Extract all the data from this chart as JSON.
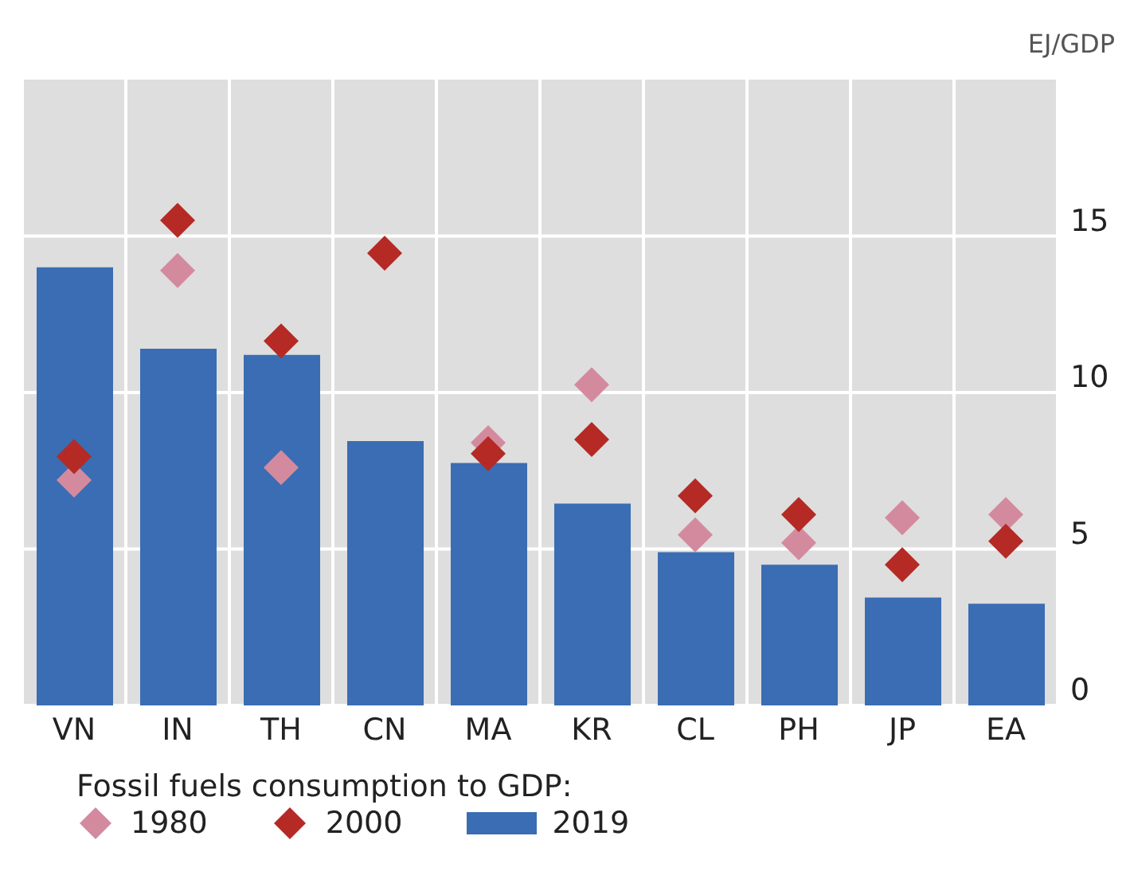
{
  "chart_data": {
    "type": "bar",
    "ylabel": "EJ/GDP",
    "legend_title": "Fossil fuels consumption to GDP:",
    "categories": [
      "VN",
      "IN",
      "TH",
      "CN",
      "MA",
      "KR",
      "CL",
      "PH",
      "JP",
      "EA"
    ],
    "series": [
      {
        "name": "1980",
        "type": "scatter",
        "color": "#d48a9e",
        "values": [
          7.2,
          13.9,
          7.6,
          null,
          8.4,
          10.25,
          5.45,
          5.2,
          6.0,
          6.1
        ]
      },
      {
        "name": "2000",
        "type": "scatter",
        "color": "#b52a25",
        "values": [
          7.95,
          15.5,
          11.65,
          14.45,
          8.05,
          8.5,
          6.7,
          6.1,
          4.5,
          5.25
        ]
      },
      {
        "name": "2019",
        "color": "#3a6db3",
        "values": [
          14.0,
          11.4,
          11.2,
          8.45,
          7.75,
          6.45,
          4.9,
          4.5,
          3.45,
          3.25
        ]
      }
    ],
    "ylim": [
      0,
      20
    ],
    "yticks": [
      0,
      5,
      10,
      15
    ],
    "grid": true,
    "legend": "bottom",
    "marker": "diamond"
  }
}
